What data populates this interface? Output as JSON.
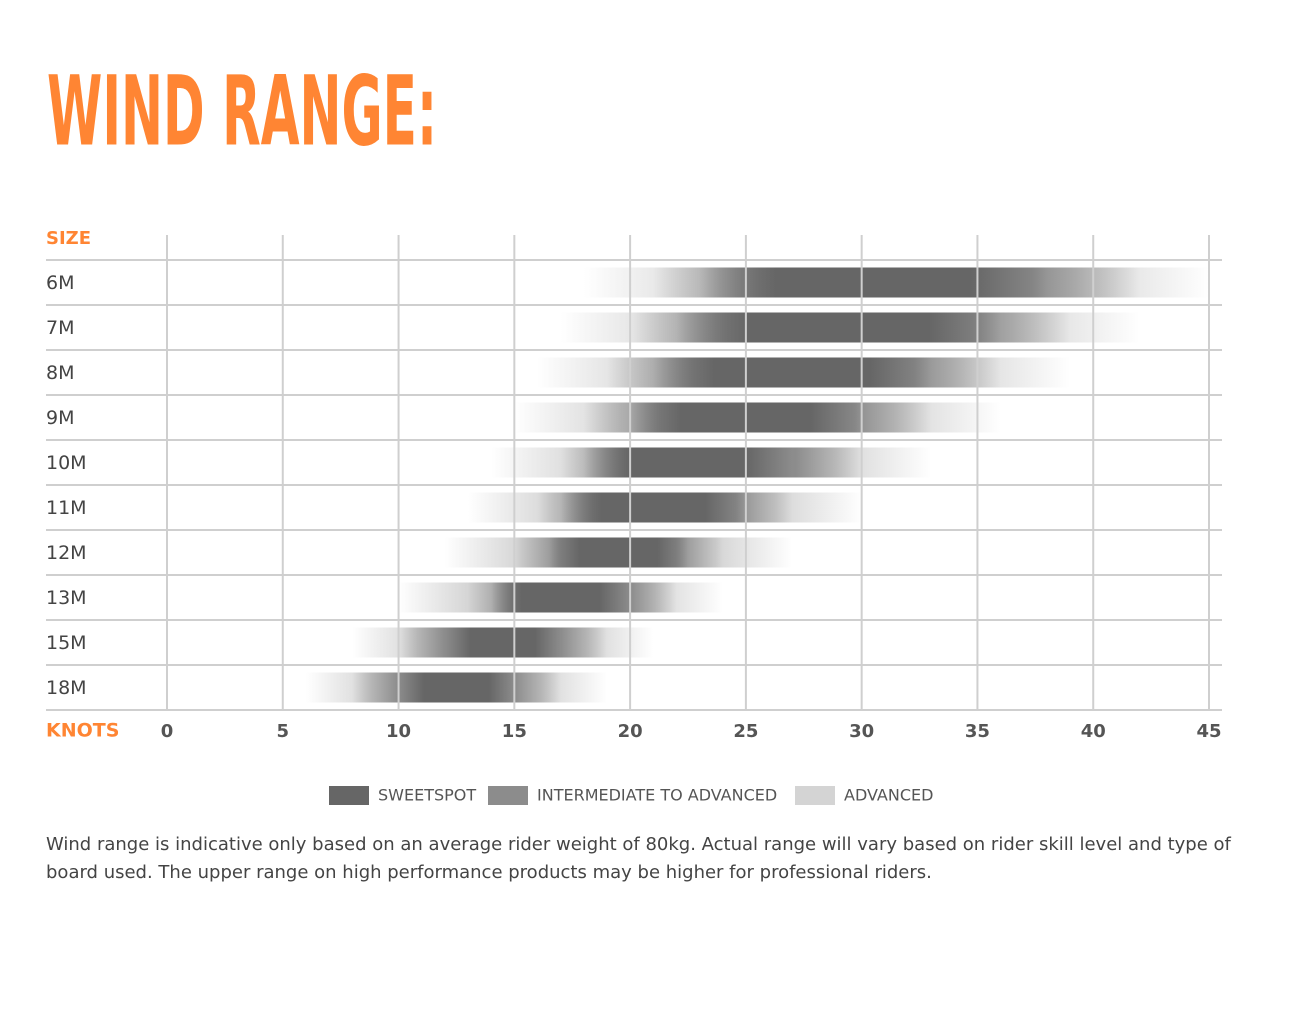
{
  "chart_data": {
    "type": "range-bar",
    "title": "WIND RANGE:",
    "y_label": "SIZE",
    "x_label": "KNOTS",
    "note": "Wind range is indicative only based on an average rider weight of 80kg. Actual range will vary based on rider skill level and type of board used. The upper range on high performance products may be higher for professional riders.",
    "categories": [
      "6M",
      "7M",
      "8M",
      "9M",
      "10M",
      "11M",
      "12M",
      "13M",
      "15M",
      "18M"
    ],
    "series": [
      {
        "name": "SWEETSPOT",
        "color": "#666666",
        "values": [
          [
            23,
            38
          ],
          [
            22,
            36
          ],
          [
            21,
            33
          ],
          [
            20,
            30
          ],
          [
            18,
            27
          ],
          [
            17,
            25
          ],
          [
            16.5,
            22.5
          ],
          [
            14,
            20
          ],
          [
            12,
            17
          ],
          [
            10,
            15
          ]
        ]
      },
      {
        "name": "INTERMEDIATE TO ADVANCED",
        "color": "#8c8c8c",
        "values": [
          [
            21,
            42
          ],
          [
            20,
            39
          ],
          [
            19,
            36
          ],
          [
            18,
            33
          ],
          [
            17,
            30
          ],
          [
            16,
            27
          ],
          [
            15,
            24
          ],
          [
            13,
            22
          ],
          [
            10,
            19
          ],
          [
            8,
            17
          ]
        ]
      },
      {
        "name": "ADVANCED",
        "color": "#d4d4d4",
        "values": [
          [
            18,
            45
          ],
          [
            17,
            42
          ],
          [
            16,
            39
          ],
          [
            15,
            36
          ],
          [
            14,
            33
          ],
          [
            13,
            30
          ],
          [
            12,
            27
          ],
          [
            10,
            24
          ],
          [
            8,
            21
          ],
          [
            6,
            19
          ]
        ]
      }
    ],
    "xlim": [
      0,
      45
    ],
    "xticks": [
      0,
      5,
      10,
      15,
      20,
      25,
      30,
      35,
      40,
      45
    ],
    "grid": true,
    "accent_color": "#ff8533"
  }
}
